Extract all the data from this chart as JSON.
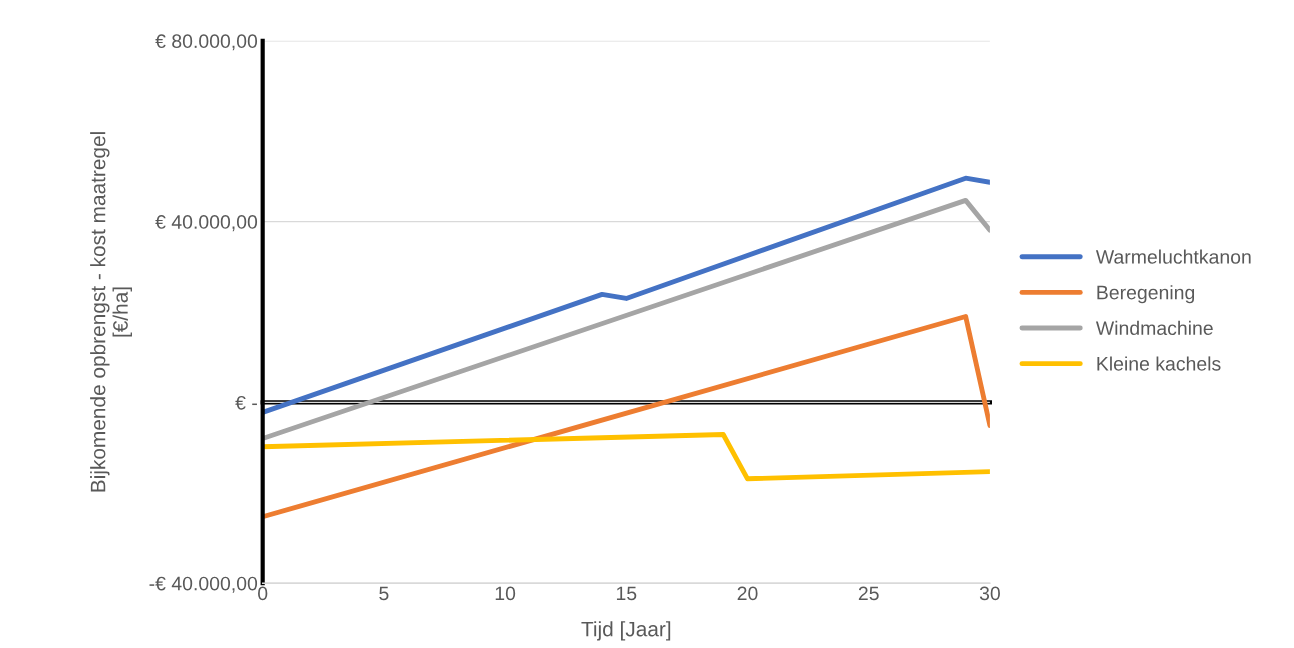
{
  "chart_data": {
    "type": "line",
    "xlabel": "Tijd [Jaar]",
    "ylabel": "Bijkomende opbrengst - kost maatregel\n[€/ha]",
    "xlim": [
      0,
      30
    ],
    "xticks": [
      0,
      5,
      10,
      15,
      20,
      25,
      30
    ],
    "ylim": [
      -40000,
      80000
    ],
    "yticks": [
      {
        "value": -40000,
        "label": "-€ 40.000,00"
      },
      {
        "value": 0,
        "label": "€ -"
      },
      {
        "value": 40000,
        "label": "€ 40.000,00"
      },
      {
        "value": 80000,
        "label": "€ 80.000,00"
      }
    ],
    "grid": "y",
    "legend": "right",
    "marker": "none",
    "line_style": "solid",
    "series": [
      {
        "name": "Warmeluchtkanon",
        "color": "#4472c4",
        "x": [
          0,
          14,
          15,
          29,
          30
        ],
        "values": [
          -2200,
          23900,
          23000,
          49600,
          48700
        ]
      },
      {
        "name": "Beregening",
        "color": "#ed7d31",
        "x": [
          0,
          29,
          30
        ],
        "values": [
          -25300,
          19000,
          -5100
        ]
      },
      {
        "name": "Windmachine",
        "color": "#a5a5a5",
        "x": [
          0,
          29,
          30
        ],
        "values": [
          -8000,
          44700,
          38100
        ]
      },
      {
        "name": "Kleine kachels",
        "color": "#ffc000",
        "x": [
          0,
          19,
          20,
          30
        ],
        "values": [
          -9800,
          -7100,
          -16900,
          -15300
        ]
      }
    ]
  }
}
